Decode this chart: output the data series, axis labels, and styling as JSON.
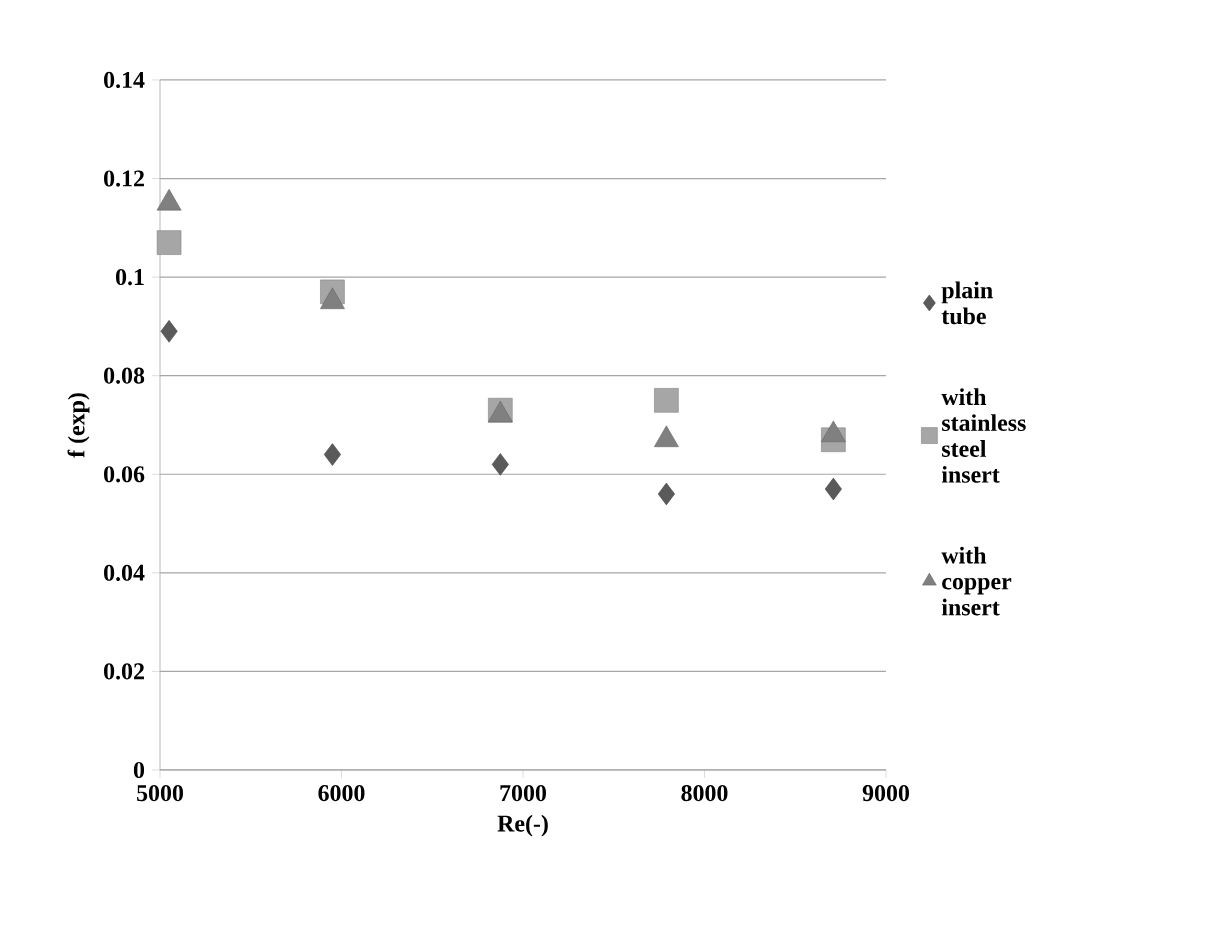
{
  "chart_data": {
    "type": "scatter",
    "xlabel": "Re(-)",
    "ylabel": "f (exp)",
    "xlim": [
      5000,
      9000
    ],
    "xticks": [
      5000,
      6000,
      7000,
      8000,
      9000
    ],
    "ylim": [
      0,
      0.14
    ],
    "yticks": [
      0,
      0.02,
      0.04,
      0.06,
      0.08,
      0.1,
      0.12,
      0.14
    ],
    "grid": "y",
    "legend": "right",
    "series": [
      {
        "name": "plain tube",
        "color": "#5a5a5a",
        "marker": "diamond",
        "x": [
          5050,
          5950,
          6875,
          7790,
          8710
        ],
        "values": [
          0.089,
          0.064,
          0.062,
          0.056,
          0.057
        ]
      },
      {
        "name": "with stainless steel insert",
        "color": "#a6a6a6",
        "marker": "square",
        "x": [
          5050,
          5950,
          6875,
          7790,
          8710
        ],
        "values": [
          0.107,
          0.097,
          0.073,
          0.075,
          0.067
        ]
      },
      {
        "name": "with copper insert",
        "color": "#808080",
        "marker": "triangle",
        "x": [
          5050,
          5950,
          6875,
          7790,
          8710
        ],
        "values": [
          0.115,
          0.095,
          0.072,
          0.067,
          0.068
        ]
      }
    ]
  }
}
